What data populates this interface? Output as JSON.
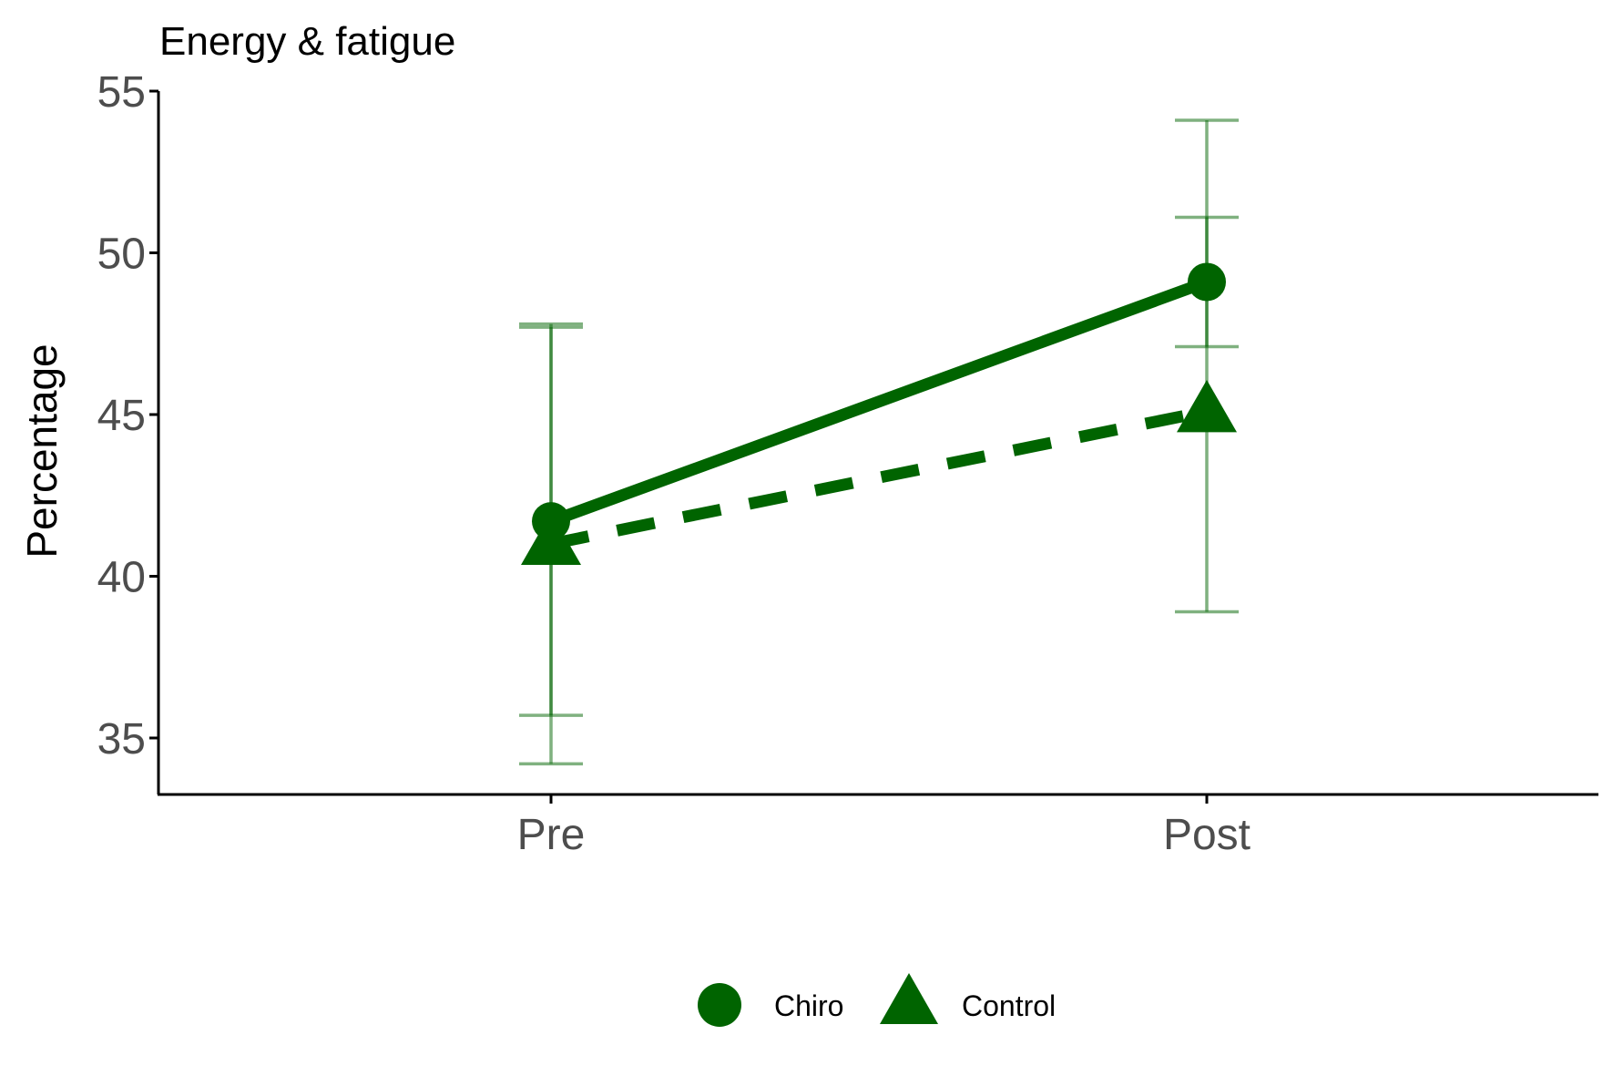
{
  "chart_data": {
    "type": "line",
    "title": "Energy & fatigue",
    "xlabel": "",
    "ylabel": "Percentage",
    "categories": [
      "Pre",
      "Post"
    ],
    "ylim": [
      33.2,
      55
    ],
    "yticks": [
      35,
      40,
      45,
      50,
      55
    ],
    "grid": false,
    "legend_position": "bottom",
    "color": "#006400",
    "series": [
      {
        "name": "Chiro",
        "marker": "circle",
        "linestyle": "solid",
        "values": [
          41.7,
          49.1
        ],
        "error_low": [
          35.7,
          47.1
        ],
        "error_high": [
          47.7,
          51.1
        ]
      },
      {
        "name": "Control",
        "marker": "triangle",
        "linestyle": "dashed",
        "values": [
          41.0,
          45.1
        ],
        "error_low": [
          34.2,
          38.9
        ],
        "error_high": [
          47.8,
          54.1
        ]
      }
    ]
  }
}
